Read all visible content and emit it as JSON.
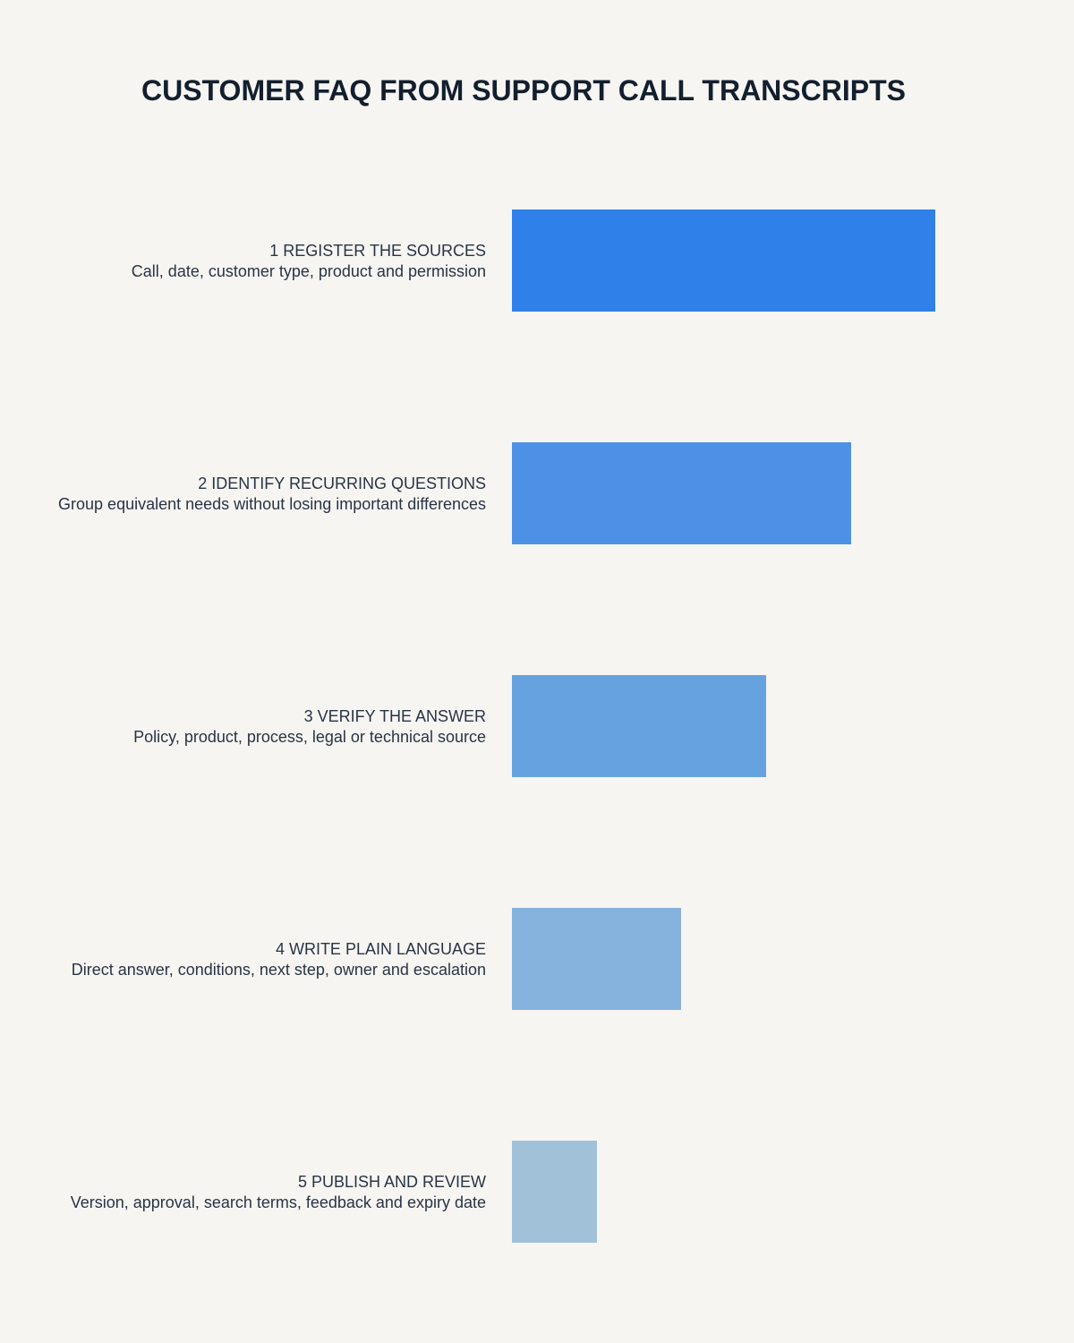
{
  "header": {
    "title": "CUSTOMER FAQ FROM SUPPORT CALL TRANSCRIPTS"
  },
  "steps": [
    {
      "title": "1 REGISTER THE SOURCES",
      "description": "Call, date, customer type, product and permission"
    },
    {
      "title": "2 IDENTIFY RECURRING QUESTIONS",
      "description": "Group equivalent needs without losing important differences"
    },
    {
      "title": "3 VERIFY THE ANSWER",
      "description": "Policy, product, process, legal or technical source"
    },
    {
      "title": "4 WRITE PLAIN LANGUAGE",
      "description": "Direct answer, conditions, next step, owner and escalation"
    },
    {
      "title": "5 PUBLISH AND REVIEW",
      "description": "Version, approval, search terms, feedback and expiry date"
    }
  ]
}
